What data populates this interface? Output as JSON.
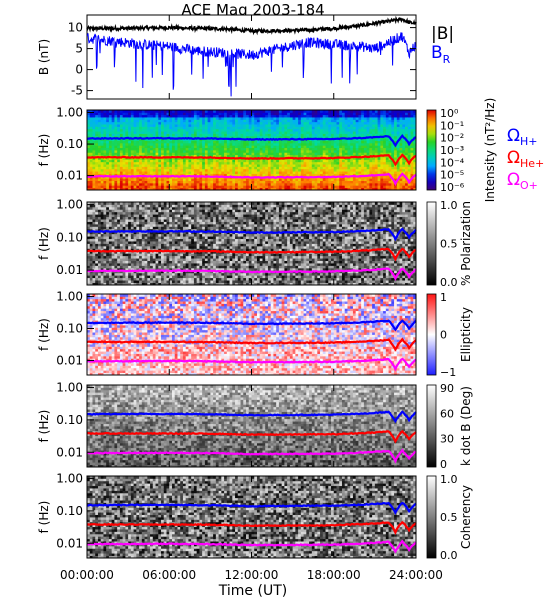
{
  "chart_data": {
    "type": "spectrogram",
    "title": "ACE Mag 2003-184",
    "xlabel": "Time (UT)",
    "x_ticks": [
      "00:00:00",
      "06:00:00",
      "12:00:00",
      "18:00:00",
      "24:00:00"
    ],
    "x_range_hours": [
      0,
      24
    ],
    "line_panel": {
      "ylabel": "B (nT)",
      "ylim": [
        -7,
        13
      ],
      "y_ticks": [
        "10",
        "5",
        "0",
        "-5"
      ],
      "legend": [
        {
          "label": "|B|",
          "color": "#000000"
        },
        {
          "label": "B",
          "sub": "R",
          "color": "#0000ff"
        }
      ],
      "series": [
        {
          "name": "|B|",
          "color": "#000000",
          "x": [
            0,
            2,
            4,
            6,
            8,
            10,
            12,
            14,
            16,
            18,
            20,
            21,
            22,
            23,
            23.5,
            24
          ],
          "values": [
            9.8,
            9.8,
            9.9,
            10.0,
            9.8,
            9.7,
            9.2,
            9.3,
            9.4,
            9.8,
            10.5,
            11.0,
            11.5,
            12.0,
            11.2,
            11.0
          ]
        },
        {
          "name": "B_R",
          "color": "#0000ff",
          "x": [
            0,
            2,
            4,
            6,
            8,
            10,
            12,
            14,
            16,
            18,
            20,
            21,
            22,
            23,
            23.5,
            24
          ],
          "values": [
            7.5,
            6.8,
            6.0,
            5.5,
            4.5,
            4.0,
            3.5,
            5.0,
            6.5,
            6.0,
            5.5,
            5.0,
            6.5,
            8.0,
            4.0,
            6.0
          ]
        }
      ]
    },
    "spectrogram_panels": [
      {
        "ylabel": "f (Hz)",
        "cbar_label": "Intensity (nT²/Hz)",
        "cbar_ticks": [
          "10⁰",
          "10⁻¹",
          "10⁻²",
          "10⁻³",
          "10⁻⁴",
          "10⁻⁵",
          "10⁻⁶"
        ],
        "colormap": "rainbow"
      },
      {
        "ylabel": "f (Hz)",
        "cbar_label": "% Polarization",
        "cbar_ticks": [
          "1.0",
          "0.5",
          "0.0"
        ],
        "colormap": "grey"
      },
      {
        "ylabel": "f (Hz)",
        "cbar_label": "Ellipticity",
        "cbar_ticks": [
          "1",
          "0",
          "−1"
        ],
        "colormap": "bwr"
      },
      {
        "ylabel": "f (Hz)",
        "cbar_label": "k dot B (Deg)",
        "cbar_ticks": [
          "90",
          "60",
          "30",
          "0"
        ],
        "colormap": "grey"
      },
      {
        "ylabel": "f (Hz)",
        "cbar_label": "Coherency",
        "cbar_ticks": [
          "1.0",
          "0.5",
          "0.0"
        ],
        "colormap": "grey"
      }
    ],
    "freq_ticks": [
      "1.00",
      "0.10",
      "0.01"
    ],
    "freq_range_hz": [
      0.0035,
      1.2
    ],
    "gyro_lines": [
      {
        "label": "Ω",
        "sub": "H+",
        "color": "#0000ff",
        "x": [
          0,
          3,
          6,
          9,
          12,
          15,
          18,
          20,
          21,
          22,
          22.5,
          23,
          23.5,
          24
        ],
        "values": [
          0.15,
          0.152,
          0.153,
          0.15,
          0.14,
          0.142,
          0.145,
          0.155,
          0.165,
          0.175,
          0.09,
          0.18,
          0.1,
          0.17
        ]
      },
      {
        "label": "Ω",
        "sub": "He+",
        "color": "#ff0000",
        "x": [
          0,
          3,
          6,
          9,
          12,
          15,
          18,
          20,
          21,
          22,
          22.5,
          23,
          23.5,
          24
        ],
        "values": [
          0.038,
          0.038,
          0.038,
          0.0375,
          0.035,
          0.0355,
          0.036,
          0.039,
          0.041,
          0.044,
          0.022,
          0.045,
          0.025,
          0.043
        ]
      },
      {
        "label": "Ω",
        "sub": "O+",
        "color": "#ff00ff",
        "x": [
          0,
          3,
          6,
          9,
          12,
          15,
          18,
          20,
          21,
          22,
          22.5,
          23,
          23.5,
          24
        ],
        "values": [
          0.0094,
          0.0095,
          0.0096,
          0.0094,
          0.0088,
          0.0089,
          0.0091,
          0.0097,
          0.0103,
          0.011,
          0.0055,
          0.0112,
          0.0063,
          0.0107
        ]
      }
    ]
  }
}
